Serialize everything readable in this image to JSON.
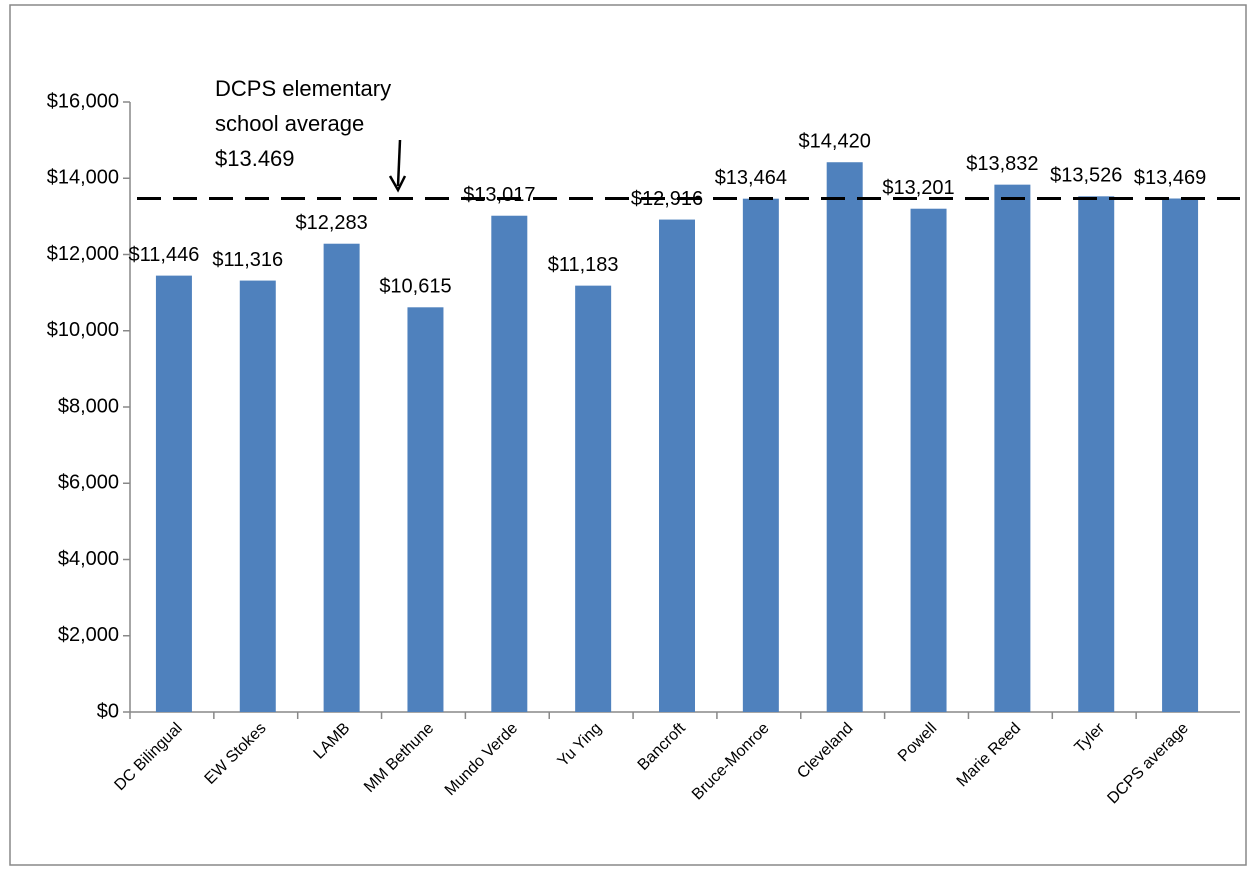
{
  "chart_data": {
    "type": "bar",
    "categories": [
      "DC Bilingual",
      "EW Stokes",
      "LAMB",
      "MM Bethune",
      "Mundo Verde",
      "Yu Ying",
      "Bancroft",
      "Bruce-Monroe",
      "Cleveland",
      "Powell",
      "Marie Reed",
      "Tyler",
      "DCPS average"
    ],
    "values": [
      11446,
      11316,
      12283,
      10615,
      13017,
      11183,
      12916,
      13464,
      14420,
      13201,
      13832,
      13526,
      13469
    ],
    "value_labels": [
      "$11,446",
      "$11,316",
      "$12,283",
      "$10,615",
      "$13,017",
      "$11,183",
      "$12,916",
      "$13,464",
      "$14,420",
      "$13,201",
      "$13,832",
      "$13,526",
      "$13,469"
    ],
    "color": "#4f81bd",
    "ylim": [
      0,
      16000
    ],
    "yticks": [
      {
        "value": 0,
        "label": "$0"
      },
      {
        "value": 2000,
        "label": "$2,000"
      },
      {
        "value": 4000,
        "label": "$4,000"
      },
      {
        "value": 6000,
        "label": "$6,000"
      },
      {
        "value": 8000,
        "label": "$8,000"
      },
      {
        "value": 10000,
        "label": "$10,000"
      },
      {
        "value": 12000,
        "label": "$12,000"
      },
      {
        "value": 14000,
        "label": "$14,000"
      },
      {
        "value": 16000,
        "label": "$16,000"
      }
    ],
    "reference_line": 13469,
    "annotation": [
      "DCPS elementary",
      "school average",
      "$13.469"
    ]
  }
}
